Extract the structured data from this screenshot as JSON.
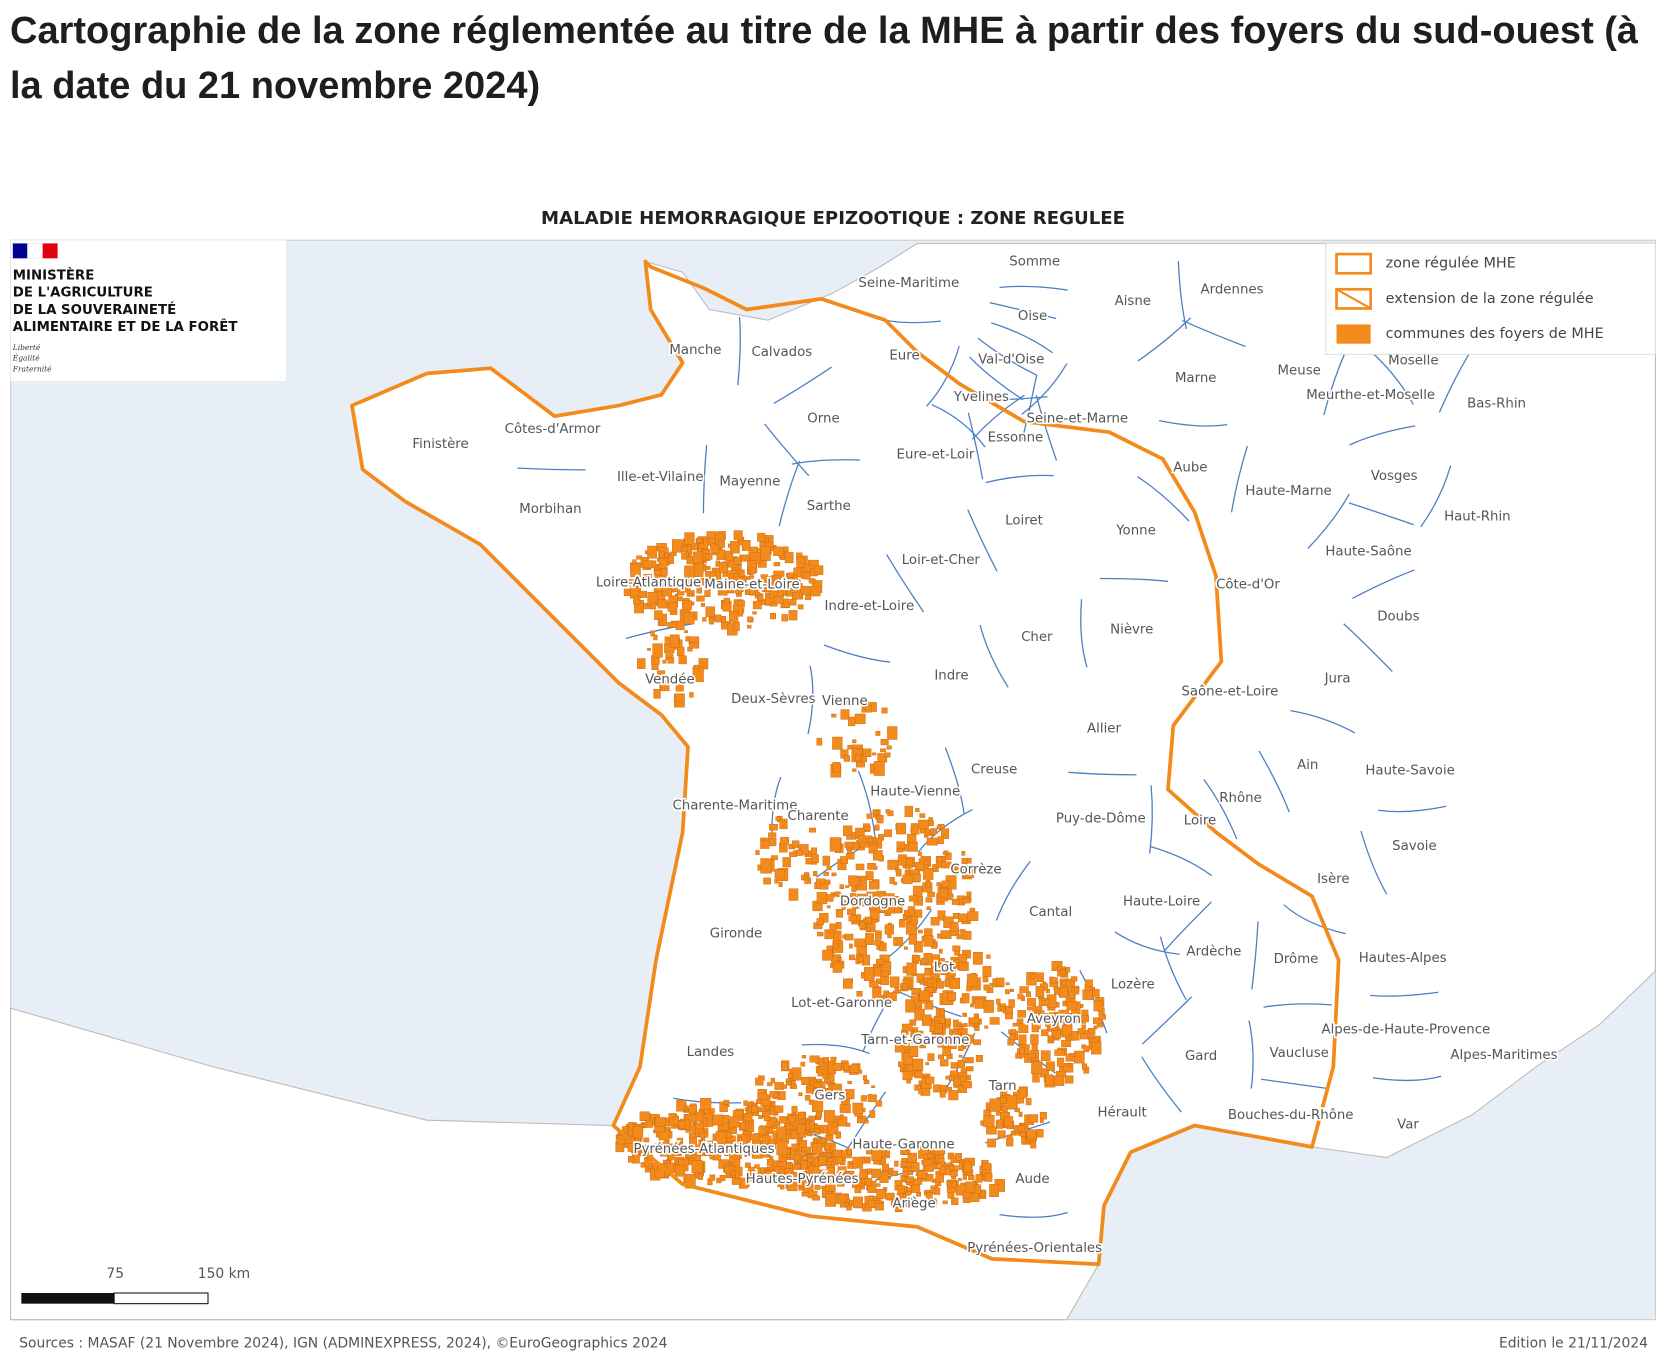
{
  "header": {
    "title": "Cartographie de la zone réglementée au titre de la MHE à partir des foyers du sud-ouest (à la date du 21 novembre 2024)"
  },
  "map": {
    "title": "MALADIE HEMORRAGIQUE EPIZOOTIQUE : ZONE REGULEE",
    "logo": {
      "lines": [
        "MINISTÈRE",
        "DE L'AGRICULTURE",
        "DE LA SOUVERAINETÉ",
        "ALIMENTAIRE ET DE LA FORÊT"
      ],
      "motto": [
        "Liberté",
        "Égalité",
        "Fraternité"
      ]
    },
    "legend": [
      {
        "label": "zone régulée MHE"
      },
      {
        "label": "extension de la zone régulée"
      },
      {
        "label": "communes des foyers de MHE"
      }
    ],
    "departments": [
      "Seine-Maritime",
      "Somme",
      "Aisne",
      "Ardennes",
      "Oise",
      "Manche",
      "Calvados",
      "Eure",
      "Val-d'Oise",
      "Marne",
      "Meuse",
      "Meurthe-et-Moselle",
      "Moselle",
      "Bas-Rhin",
      "Finistère",
      "Côtes-d'Armor",
      "Orne",
      "Yvelines",
      "Seine-et-Marne",
      "Essonne",
      "Eure-et-Loir",
      "Ille-et-Vilaine",
      "Mayenne",
      "Sarthe",
      "Aube",
      "Haute-Marne",
      "Vosges",
      "Haut-Rhin",
      "Morbihan",
      "Loiret",
      "Yonne",
      "Haute-Saône",
      "Loire-Atlantique",
      "Maine-et-Loire",
      "Loir-et-Cher",
      "Indre-et-Loire",
      "Côte-d'Or",
      "Cher",
      "Nièvre",
      "Doubs",
      "Vendée",
      "Deux-Sèvres",
      "Vienne",
      "Indre",
      "Jura",
      "Saône-et-Loire",
      "Allier",
      "Haute-Savoie",
      "Ain",
      "Creuse",
      "Haute-Vienne",
      "Charente-Maritime",
      "Charente",
      "Puy-de-Dôme",
      "Rhône",
      "Loire",
      "Savoie",
      "Corrèze",
      "Isère",
      "Dordogne",
      "Cantal",
      "Haute-Loire",
      "Gironde",
      "Drôme",
      "Ardèche",
      "Hautes-Alpes",
      "Lot",
      "Lozère",
      "Lot-et-Garonne",
      "Aveyron",
      "Alpes-de-Haute-Provence",
      "Alpes-Maritimes",
      "Tarn-et-Garonne",
      "Landes",
      "Gard",
      "Vaucluse",
      "Gers",
      "Tarn",
      "Hérault",
      "Bouches-du-Rhône",
      "Var",
      "Haute-Garonne",
      "Pyrénées-Atlantiques",
      "Hautes-Pyrénées",
      "Aude",
      "Ariège",
      "Pyrénées-Orientales"
    ],
    "scale": [
      "75",
      "150 km"
    ]
  },
  "footer": {
    "sources": "Sources : MASAF (21 Novembre 2024), IGN (ADMINEXPRESS, 2024), ©EuroGeographics 2024",
    "edition": "Edition le 21/11/2024"
  }
}
